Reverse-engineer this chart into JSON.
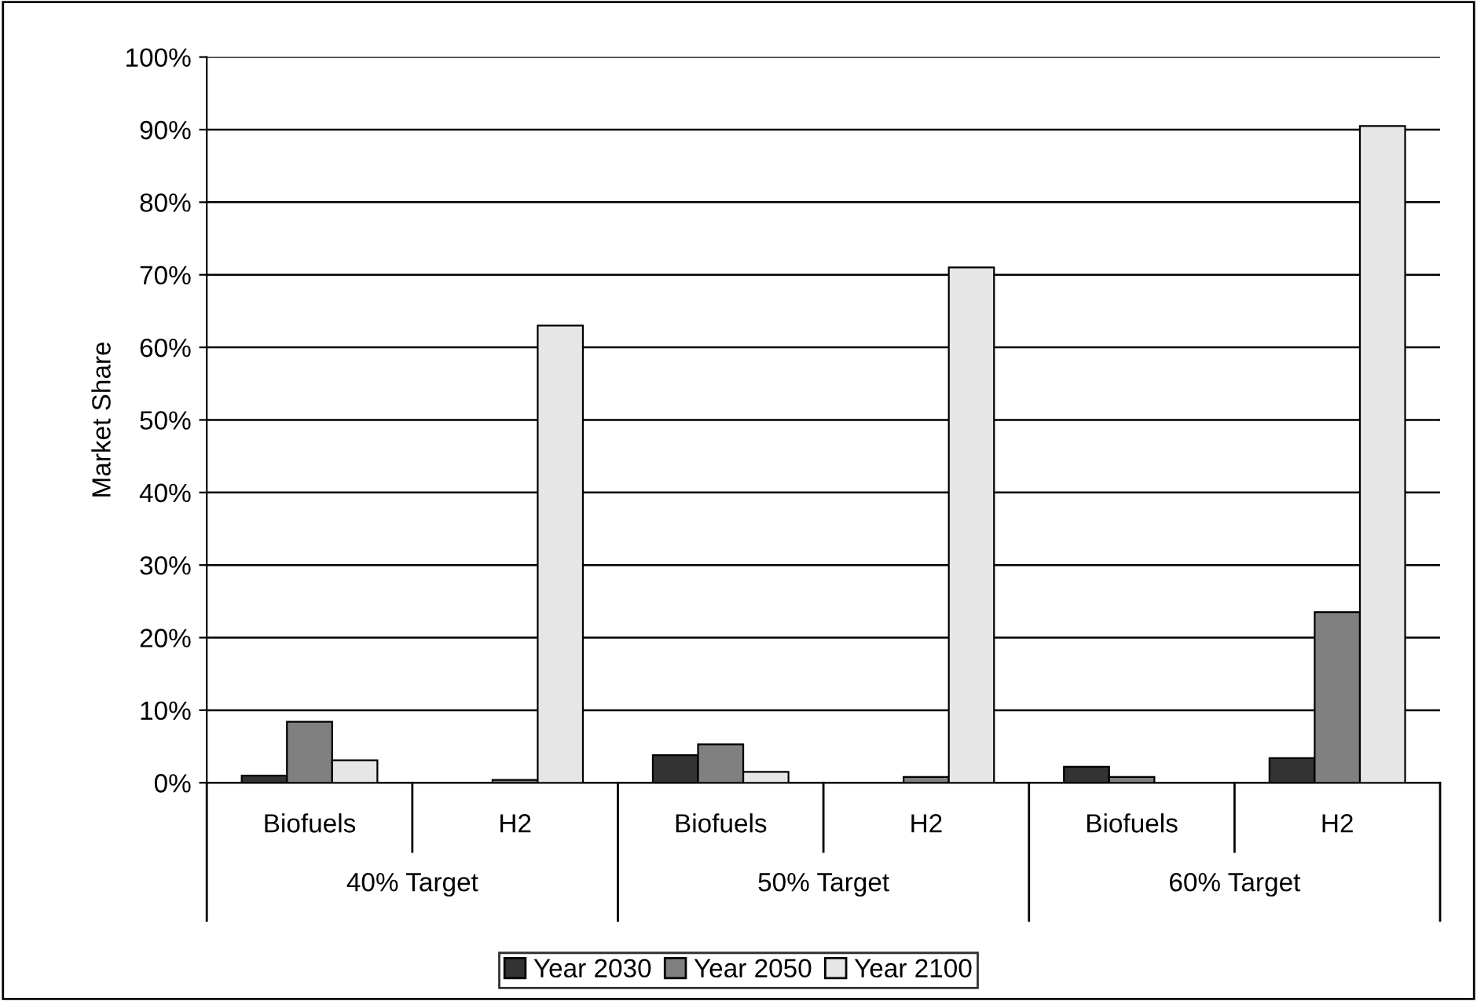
{
  "chart_data": {
    "type": "bar",
    "ylabel": "Market Share",
    "categories": [
      "Biofuels",
      "H2",
      "Biofuels",
      "H2",
      "Biofuels",
      "H2"
    ],
    "annotations": [
      "40% Target",
      "50% Target",
      "60% Target"
    ],
    "series": [
      {
        "name": "Year 2030",
        "color": "#333333",
        "values": [
          1.0,
          0,
          3.8,
          0,
          2.2,
          3.4
        ]
      },
      {
        "name": "Year 2050",
        "color": "#808080",
        "values": [
          8.4,
          0.4,
          5.3,
          0.8,
          0.8,
          23.5
        ]
      },
      {
        "name": "Year 2100",
        "color": "#e6e6e6",
        "values": [
          3.1,
          63,
          1.5,
          71,
          0,
          90.5
        ]
      }
    ],
    "ylim": [
      0,
      100
    ],
    "yticks": [
      {
        "value": 0,
        "label": "0%"
      },
      {
        "value": 10,
        "label": "10%"
      },
      {
        "value": 20,
        "label": "20%"
      },
      {
        "value": 30,
        "label": "30%"
      },
      {
        "value": 40,
        "label": "40%"
      },
      {
        "value": 50,
        "label": "50%"
      },
      {
        "value": 60,
        "label": "60%"
      },
      {
        "value": 70,
        "label": "70%"
      },
      {
        "value": 80,
        "label": "80%"
      },
      {
        "value": 90,
        "label": "90%"
      },
      {
        "value": 100,
        "label": "100%"
      }
    ],
    "grid": "y",
    "legend": "bottom"
  }
}
